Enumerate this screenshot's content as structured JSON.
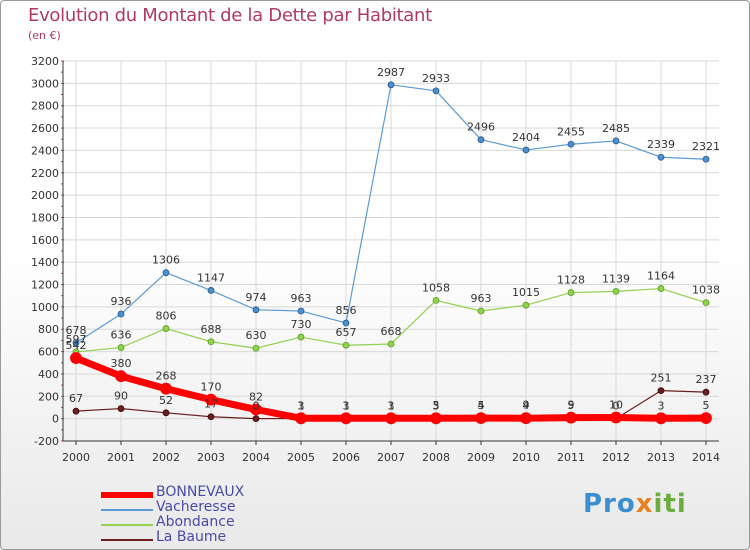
{
  "title": "Evolution du Montant de la Dette par Habitant",
  "unit_label": "(en €)",
  "logo": {
    "text": "Proxiti",
    "part1": "Pro",
    "part2": "x",
    "part3": "iti"
  },
  "colors": {
    "title": "#b03a64",
    "grid": "#d8d8d8",
    "axis": "#333333",
    "BONNEVAUX": "#ff0000",
    "Vacheresse": "#5b9bd5",
    "Abondance": "#92d050",
    "La Baume": "#6b1e1e"
  },
  "chart_data": {
    "type": "line",
    "title": "Evolution du Montant de la Dette par Habitant",
    "ylabel": "(en €)",
    "xlabel": "",
    "ylim": [
      -200,
      3200
    ],
    "ytick_step": 200,
    "grid": true,
    "x": [
      "2000",
      "2001",
      "2002",
      "2003",
      "2004",
      "2005",
      "2006",
      "2007",
      "2008",
      "2009",
      "2010",
      "2011",
      "2012",
      "2013",
      "2014"
    ],
    "series": [
      {
        "name": "BONNEVAUX",
        "values": [
          542,
          380,
          268,
          170,
          82,
          3,
          3,
          3,
          3,
          5,
          4,
          9,
          10,
          3,
          5
        ],
        "labels": [
          "542",
          "380",
          "268",
          "170",
          "82",
          "3",
          "3",
          "3",
          "3",
          "5",
          "4",
          "9",
          "10",
          "3",
          "5"
        ]
      },
      {
        "name": "Vacheresse",
        "values": [
          678,
          936,
          1306,
          1147,
          974,
          963,
          856,
          2987,
          2933,
          2496,
          2404,
          2455,
          2485,
          2339,
          2321
        ],
        "labels": [
          "678",
          "936",
          "1306",
          "1147",
          "974",
          "963",
          "856",
          "2987",
          "2933",
          "2496",
          "2404",
          "2455",
          "2485",
          "2339",
          "2321"
        ]
      },
      {
        "name": "Abondance",
        "values": [
          597,
          636,
          806,
          688,
          630,
          730,
          657,
          668,
          1058,
          963,
          1015,
          1128,
          1139,
          1164,
          1038
        ],
        "labels": [
          "597",
          "636",
          "806",
          "688",
          "630",
          "730",
          "657",
          "668",
          "1058",
          "963",
          "1015",
          "1128",
          "1139",
          "1164",
          "1038"
        ]
      },
      {
        "name": "La Baume",
        "values": [
          67,
          90,
          52,
          17,
          0,
          1,
          1,
          1,
          5,
          4,
          9,
          5,
          0,
          251,
          237
        ],
        "labels": [
          "67",
          "90",
          "52",
          "17",
          "0",
          "1",
          "1",
          "1",
          "5",
          "4",
          "9",
          "5",
          "0",
          "251",
          "237"
        ]
      }
    ],
    "legend": [
      "BONNEVAUX",
      "Vacheresse",
      "Abondance",
      "La Baume"
    ],
    "legend_position": "bottom-left"
  }
}
